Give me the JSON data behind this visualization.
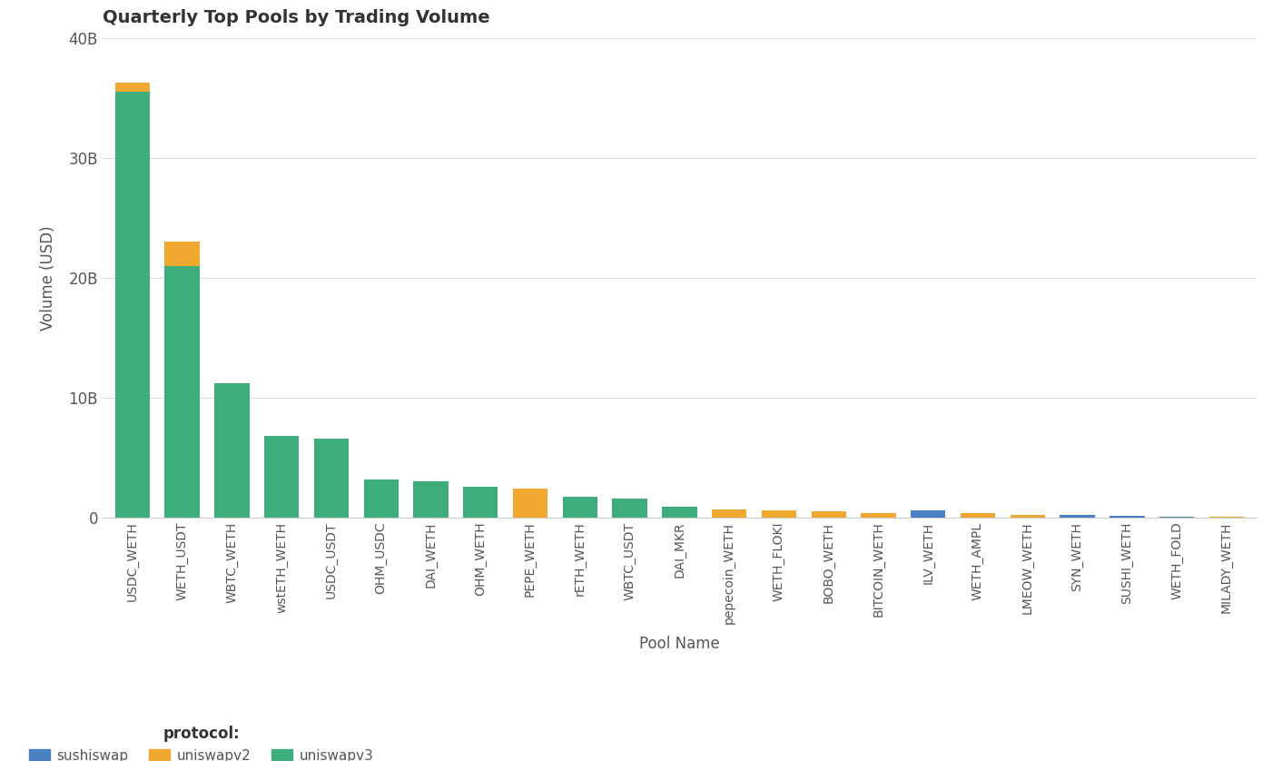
{
  "title": "Quarterly Top Pools by Trading Volume",
  "xlabel": "Pool Name",
  "ylabel": "Volume (USD)",
  "background_color": "#ffffff",
  "pools": [
    "USDC_WETH",
    "WETH_USDT",
    "WBTC_WETH",
    "wstETH_WETH",
    "USDC_USDT",
    "OHM_USDC",
    "DAI_WETH",
    "OHM_WETH",
    "PEPE_WETH",
    "rETH_WETH",
    "WBTC_USDT",
    "DAI_MKR",
    "pepecoin_WETH",
    "WETH_FLOKI",
    "BOBO_WETH",
    "BITCOIN_WETH",
    "ILV_WETH",
    "WETH_AMPL",
    "LMEOW_WETH",
    "SYN_WETH",
    "SUSHI_WETH",
    "WETH_FOLD",
    "MILADY_WETH"
  ],
  "uniswapv3": [
    35500000000,
    21000000000,
    11200000000,
    6800000000,
    6600000000,
    3200000000,
    3000000000,
    2600000000,
    0,
    1700000000,
    1600000000,
    900000000,
    0,
    0,
    0,
    0,
    0,
    0,
    0,
    0,
    0,
    0,
    0
  ],
  "uniswapv2": [
    800000000,
    2000000000,
    0,
    0,
    0,
    0,
    0,
    0,
    2400000000,
    0,
    0,
    0,
    700000000,
    600000000,
    500000000,
    400000000,
    0,
    350000000,
    200000000,
    0,
    0,
    0,
    100000000
  ],
  "sushiswap": [
    0,
    0,
    0,
    0,
    0,
    0,
    0,
    0,
    0,
    0,
    0,
    0,
    0,
    0,
    0,
    0,
    600000000,
    0,
    0,
    200000000,
    150000000,
    100000000,
    0
  ],
  "color_uniswapv3": "#3dae7b",
  "color_uniswapv2": "#f0a830",
  "color_sushiswap": "#4a7fc1",
  "ylim": [
    0,
    40000000000
  ],
  "yticks": [
    0,
    10000000000,
    20000000000,
    30000000000,
    40000000000
  ],
  "ytick_labels": [
    "0",
    "10B",
    "20B",
    "30B",
    "40B"
  ]
}
